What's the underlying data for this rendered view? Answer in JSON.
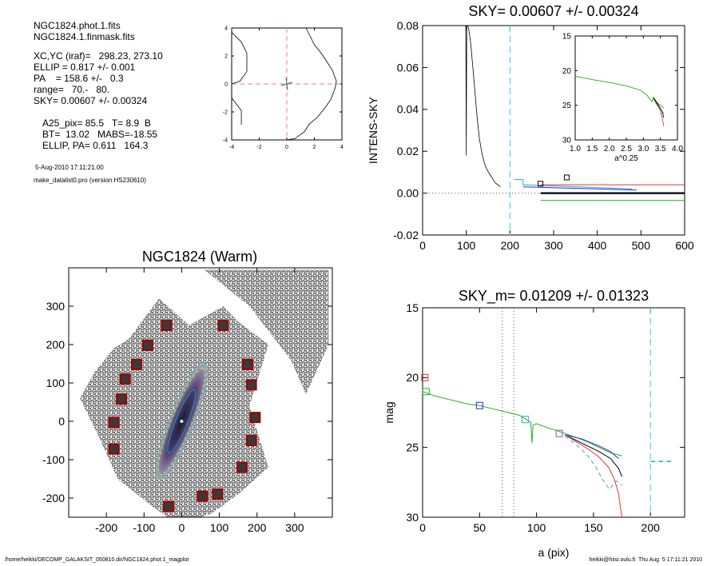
{
  "info": {
    "lines": [
      "NGC1824.phot.1.fits",
      "NGC1824.1.finmask.fits",
      "XC,YC (iraf)=   298.23, 273.10",
      "ELLIP = 0.817 +/- 0.001",
      "PA    = 158.6 +/-   0.3",
      "range=   70.-   80.",
      "SKY= 0.00607 +/- 0.00324",
      "A25_pix= 85.5   T= 8.9  B",
      "BT=  13.02   MABS=-18.55",
      "ELLIP, PA= 0.611   164.3",
      "5-Aug-2010 17:11:21.00",
      "make_datalist0.pro (version HS230610)"
    ]
  },
  "footer": {
    "left": "/home/heikki/DECOMP_GALAKSIT_050810.dir/NGC1824.phot.1_magplot",
    "right": "heikki@hiisi.oulu.fi  Thu Aug  5 17:11:21 2010"
  },
  "chart_data": [
    {
      "id": "small-profile",
      "type": "line",
      "xlim": [
        -4,
        4
      ],
      "ylim": [
        -4,
        4
      ],
      "xticks": [
        -4,
        -2,
        0,
        2,
        4
      ],
      "yticks": [
        -4,
        -2,
        0,
        2,
        4
      ],
      "series": [
        {
          "x": [
            -4,
            -3.3,
            -2.9,
            -2.9,
            -3.4,
            -4
          ],
          "y": [
            3.7,
            3.0,
            2.2,
            0.9,
            0.2,
            0
          ]
        },
        {
          "x": [
            -4,
            -3.3,
            -3.3
          ],
          "y": [
            -1.0,
            -1.9,
            -2.9
          ]
        },
        {
          "x": [
            1.4,
            1.7,
            2.0,
            2.5,
            2.9,
            3.3,
            3.6,
            3.5,
            3.2,
            2.7,
            2.2,
            1.6,
            1.3,
            0.6,
            0
          ],
          "y": [
            4,
            3.4,
            2.8,
            2.2,
            1.6,
            1.0,
            0.2,
            -0.3,
            -1.1,
            -1.8,
            -2.4,
            -2.9,
            -3.4,
            -3.9,
            -4
          ]
        }
      ],
      "crosshair": {
        "x": 0,
        "y": 0
      }
    },
    {
      "id": "sky-plot",
      "type": "line",
      "title": "SKY= 0.00607 +/- 0.00324",
      "xlabel": "",
      "ylabel": "INTENS-SKY",
      "xlim": [
        0,
        600
      ],
      "ylim": [
        -0.02,
        0.08
      ],
      "xticks": [
        0,
        100,
        200,
        300,
        400,
        500,
        600
      ],
      "xtick_labels": [
        "0",
        "100",
        "200",
        "300",
        "400",
        "500",
        "600"
      ],
      "yticks": [
        -0.02,
        0,
        0.02,
        0.04,
        0.06,
        0.08
      ],
      "ytick_labels": [
        "-0.02",
        "0.00",
        "0.02",
        "0.04",
        "0.06",
        "0.08"
      ],
      "profile": {
        "x": [
          90,
          96,
          99,
          100,
          101,
          103,
          106,
          110,
          115,
          120,
          125,
          130,
          136,
          142,
          148,
          154,
          160,
          166,
          172,
          178
        ],
        "y": [
          0.08,
          0.08,
          0.08,
          0.018,
          0.08,
          0.08,
          0.078,
          0.072,
          0.06,
          0.048,
          0.036,
          0.026,
          0.019,
          0.014,
          0.011,
          0.009,
          0.007,
          0.005,
          0.004,
          0.003
        ]
      },
      "segments": [
        {
          "color": "#2ba8c9",
          "x": [
            210,
            230,
            230,
            480
          ],
          "y": [
            0.0065,
            0.0065,
            0.004,
            0.002
          ]
        },
        {
          "color": "#2b2bd9",
          "x": [
            230,
            490
          ],
          "y": [
            0.003,
            0.0015
          ]
        },
        {
          "color": "#d93a3a",
          "x": [
            270,
            600
          ],
          "y": [
            0.004,
            0.004
          ]
        },
        {
          "color": "#1fb01f",
          "x": [
            270,
            600
          ],
          "y": [
            -0.0035,
            -0.0035
          ]
        },
        {
          "color": "#000000",
          "x": [
            270,
            600
          ],
          "y": [
            0.0,
            0.0
          ],
          "width": 2.2
        }
      ],
      "sky_cut_x": 200,
      "markers": [
        {
          "x": 270,
          "y": 0.0045
        },
        {
          "x": 330,
          "y": 0.0075
        }
      ],
      "inset": {
        "xlim": [
          1.0,
          4.0
        ],
        "ylim": [
          15,
          30
        ],
        "xlabel": "a^0.25",
        "xticks": [
          1.0,
          1.5,
          2.0,
          2.5,
          3.0,
          3.5,
          4.0
        ],
        "xtick_labels": [
          "1.0",
          "1.5",
          "2.0",
          "2.5",
          "3.0",
          "3.5",
          "4.0"
        ],
        "yticks": [
          15,
          20,
          25,
          30
        ],
        "ytick_labels": [
          "15",
          "20",
          "25",
          "30"
        ],
        "series": [
          {
            "color": "#1fb01f",
            "x": [
              1.0,
              1.5,
              2.0,
              2.5,
              2.9,
              3.1,
              3.25,
              3.3,
              3.4,
              3.5,
              3.6
            ],
            "y": [
              20.8,
              21.3,
              21.7,
              22.2,
              22.8,
              23.5,
              24.5,
              23.8,
              24.6,
              25.0,
              25.4
            ]
          },
          {
            "color": "#2ba8c9",
            "x": [
              3.3,
              3.4,
              3.5,
              3.6
            ],
            "y": [
              24.0,
              25.0,
              25.6,
              26.2
            ]
          },
          {
            "color": "#d93a3a",
            "x": [
              3.3,
              3.4,
              3.5,
              3.55,
              3.6
            ],
            "y": [
              24.1,
              24.8,
              25.8,
              26.8,
              28.0
            ]
          },
          {
            "color": "#000000",
            "x": [
              3.3,
              3.45,
              3.55,
              3.6
            ],
            "y": [
              24.0,
              25.0,
              25.9,
              26.8
            ]
          }
        ]
      }
    },
    {
      "id": "galaxy-image",
      "type": "scatter",
      "title": "NGC1824 (Warm)",
      "xlim": [
        -300,
        400
      ],
      "ylim": [
        -250,
        400
      ],
      "xticks": [
        -200,
        -100,
        0,
        100,
        200,
        300
      ],
      "xtick_labels": [
        "-200",
        "-100",
        "0",
        "100",
        "200",
        "300"
      ],
      "yticks": [
        -200,
        -100,
        0,
        100,
        200,
        300
      ],
      "ytick_labels": [
        "-200",
        "-100",
        "0",
        "100",
        "200",
        "300"
      ],
      "field": [
        [
          -140,
          215
        ],
        [
          -60,
          320
        ],
        [
          20,
          250
        ],
        [
          110,
          300
        ],
        [
          150,
          260
        ],
        [
          230,
          200
        ],
        [
          180,
          40
        ],
        [
          230,
          -120
        ],
        [
          150,
          -190
        ],
        [
          80,
          -240
        ],
        [
          -10,
          -270
        ],
        [
          -80,
          -220
        ],
        [
          -170,
          -150
        ],
        [
          -220,
          -40
        ],
        [
          -270,
          60
        ],
        [
          -230,
          130
        ],
        [
          -180,
          190
        ]
      ],
      "panel": [
        [
          60,
          395
        ],
        [
          390,
          395
        ],
        [
          390,
          200
        ],
        [
          330,
          70
        ],
        [
          290,
          160
        ],
        [
          180,
          300
        ]
      ],
      "galaxy": {
        "cx": 0,
        "cy": 0,
        "rx": 165,
        "ry": 32,
        "angle_deg": -68
      },
      "mask_boxes": [
        {
          "x": -40,
          "y": 250
        },
        {
          "x": 110,
          "y": 250
        },
        {
          "x": -90,
          "y": 198
        },
        {
          "x": -120,
          "y": 148
        },
        {
          "x": -150,
          "y": 110
        },
        {
          "x": -160,
          "y": 58
        },
        {
          "x": -180,
          "y": -3
        },
        {
          "x": -180,
          "y": -72
        },
        {
          "x": 175,
          "y": 148
        },
        {
          "x": 185,
          "y": 95
        },
        {
          "x": 195,
          "y": 10
        },
        {
          "x": 185,
          "y": -50
        },
        {
          "x": 160,
          "y": -120
        },
        {
          "x": 55,
          "y": -195
        },
        {
          "x": 95,
          "y": -190
        },
        {
          "x": -35,
          "y": -222
        }
      ]
    },
    {
      "id": "mag-plot",
      "type": "line",
      "title": "SKY_m=  0.01209 +/- 0.01323",
      "xlabel": "a (pix)",
      "ylabel": "mag",
      "xlim": [
        0,
        230
      ],
      "ylim": [
        15,
        30
      ],
      "xticks": [
        0,
        50,
        100,
        150,
        200
      ],
      "xtick_labels": [
        "0",
        "50",
        "100",
        "150",
        "200"
      ],
      "yticks": [
        15,
        20,
        25,
        30
      ],
      "ytick_labels": [
        "15",
        "20",
        "25",
        "30"
      ],
      "dotted_x": [
        70,
        80
      ],
      "sky_cut_x": 200,
      "series": [
        {
          "color": "#1fb01f",
          "x": [
            0,
            10,
            25,
            40,
            50,
            60,
            75,
            85,
            95,
            96,
            97,
            100,
            110,
            118,
            125,
            135,
            145,
            155,
            165,
            175
          ],
          "y": [
            21.0,
            21.3,
            21.6,
            21.9,
            22.0,
            22.2,
            22.5,
            22.7,
            23.2,
            24.7,
            23.4,
            23.3,
            23.6,
            23.8,
            24.0,
            24.3,
            24.6,
            25.0,
            25.4,
            25.6
          ]
        },
        {
          "color": "#000000",
          "x": [
            125,
            135,
            145,
            155,
            165,
            172,
            175
          ],
          "y": [
            24.1,
            24.5,
            24.9,
            25.3,
            25.8,
            26.5,
            27.1
          ]
        },
        {
          "color": "#d93a3a",
          "x": [
            125,
            135,
            145,
            155,
            163,
            168,
            172,
            174,
            175
          ],
          "y": [
            24.1,
            24.6,
            25.1,
            25.7,
            26.4,
            27.2,
            28.3,
            29.5,
            30
          ]
        },
        {
          "color": "#2ba8c9",
          "x": [
            125,
            135,
            145,
            152,
            158,
            164,
            170,
            175
          ],
          "y": [
            24.2,
            24.8,
            25.6,
            26.4,
            27.3,
            28.0,
            27.4,
            27.7
          ],
          "dashed": true
        },
        {
          "color": "#2b2bd9",
          "x": [
            125,
            140,
            155,
            165,
            172
          ],
          "y": [
            24.1,
            24.4,
            24.9,
            25.3,
            25.8
          ]
        }
      ],
      "markers": [
        {
          "color": "#d93a3a",
          "x": 2,
          "y": 20.0
        },
        {
          "color": "#1fb01f",
          "x": 3,
          "y": 21.0
        },
        {
          "color": "#2b2bd9",
          "x": 50,
          "y": 22.0
        },
        {
          "color": "#2ba8c9",
          "x": 90,
          "y": 23.0
        },
        {
          "color": "#a050a0",
          "x": 120,
          "y": 24.0
        }
      ],
      "sky_level": {
        "color": "#2ba8c9",
        "x": [
          200,
          220
        ],
        "y": [
          26.0,
          26.0
        ]
      }
    }
  ]
}
